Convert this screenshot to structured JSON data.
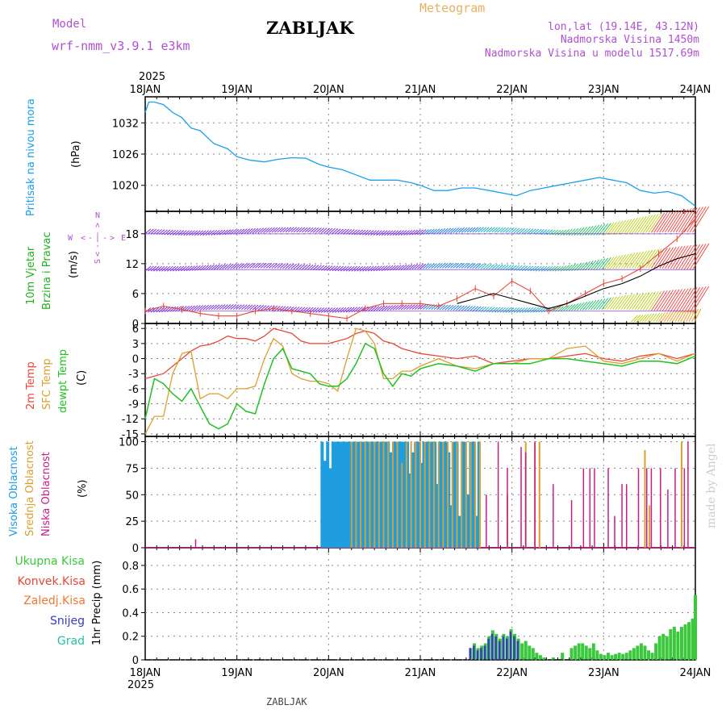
{
  "header": {
    "model_label": "Model",
    "model_value": "wrf-nmm_v3.9.1 e3km",
    "title": "ZABLJAK",
    "meteogram_label": "Meteogram",
    "lonlat": "lon,lat (19.14E, 43.12N)",
    "elevation": "Nadmorska Visina 1450m",
    "model_elevation": "Nadmorska Visina u modelu 1517.69m",
    "year_top": "2025",
    "year_bottom": "2025",
    "footer": "ZABLJAK",
    "credit": "made by Angel"
  },
  "colors": {
    "pressure": "#1aa0e8",
    "temp2m": "#e8473a",
    "sfc_temp": "#d9a030",
    "dewpoint": "#22c022",
    "high_cloud": "#1e9ee0",
    "mid_cloud": "#d9a030",
    "low_cloud": "#c81e8c",
    "precip_total": "#3cc83c",
    "precip_snow": "#3838c8",
    "model_label": "#b050d0",
    "meteogram_label": "#e8b060",
    "wind_label": "#22b022"
  },
  "chart_data": [
    {
      "type": "line",
      "title": "Pritisak na nivou mora",
      "ylabel": "(hPa)",
      "ylim": [
        1015,
        1037
      ],
      "yticks": [
        1020,
        1026,
        1032
      ],
      "x_days": [
        0,
        0.04,
        0.1,
        0.2,
        0.3,
        0.4,
        0.5,
        0.6,
        0.75,
        0.9,
        1.0,
        1.15,
        1.3,
        1.45,
        1.6,
        1.75,
        1.9,
        2.0,
        2.15,
        2.3,
        2.45,
        2.6,
        2.75,
        2.9,
        3.0,
        3.15,
        3.3,
        3.45,
        3.6,
        3.75,
        3.9,
        4.05,
        4.2,
        4.35,
        4.5,
        4.65,
        4.8,
        4.95,
        5.1,
        5.25,
        5.4,
        5.55,
        5.7,
        5.85,
        6.0
      ],
      "values": [
        1034,
        1036,
        1036,
        1035.5,
        1034,
        1033,
        1031,
        1030.5,
        1028,
        1027,
        1025.5,
        1024.8,
        1024.5,
        1025,
        1025.3,
        1025.2,
        1024,
        1023.5,
        1023,
        1022,
        1021,
        1021,
        1021,
        1020.5,
        1020,
        1019,
        1019,
        1019.5,
        1019.5,
        1019,
        1018.5,
        1018,
        1019,
        1019.5,
        1020,
        1020.5,
        1021,
        1021.5,
        1021,
        1020.5,
        1019,
        1018.5,
        1018.8,
        1018,
        1016
      ]
    },
    {
      "type": "line",
      "title": "10m Vjetar Brzina i Pravac",
      "ylabel": "(m/s)",
      "ylim": [
        0,
        22.5
      ],
      "yticks": [
        0,
        6,
        12,
        18
      ],
      "compass": {
        "north": "N",
        "east": "E",
        "west": "W",
        "south": "S"
      },
      "compass_glyphs": {
        "arrow_left": "<",
        "arrow_right": ">",
        "dash": "-",
        "bar": "|"
      },
      "x_days": [
        0,
        0.2,
        0.4,
        0.6,
        0.8,
        1.0,
        1.2,
        1.4,
        1.6,
        1.8,
        2.0,
        2.2,
        2.4,
        2.6,
        2.8,
        3.0,
        3.2,
        3.4,
        3.6,
        3.8,
        4.0,
        4.2,
        4.4,
        4.6,
        4.8,
        5.0,
        5.2,
        5.4,
        5.6,
        5.8,
        6.0
      ],
      "series": [
        {
          "name": "speed",
          "color": "#e8473a",
          "values": [
            2.5,
            3.5,
            2.8,
            2,
            1.5,
            1.5,
            2.5,
            3,
            2.5,
            2,
            1.5,
            1,
            3,
            4,
            4,
            4,
            3.5,
            5,
            7,
            5.5,
            8.5,
            6.5,
            2.5,
            4,
            6,
            8,
            9,
            11,
            14,
            17,
            21
          ]
        },
        {
          "name": "mean",
          "color": "#000000",
          "values": [
            null,
            null,
            null,
            null,
            null,
            null,
            null,
            null,
            null,
            null,
            null,
            null,
            null,
            null,
            null,
            null,
            null,
            4,
            5,
            6,
            5,
            4,
            3,
            4,
            5.5,
            7,
            8,
            9.5,
            11.5,
            13,
            14
          ]
        }
      ]
    },
    {
      "type": "line",
      "title": "2m Temp / SFC Temp / dewpt Temp",
      "ylabel": "(C)",
      "ylim": [
        -15.5,
        7
      ],
      "yticks": [
        -15,
        -12,
        -9,
        -6,
        -3,
        0,
        3,
        6
      ],
      "x_days": [
        0,
        0.1,
        0.2,
        0.3,
        0.4,
        0.5,
        0.6,
        0.7,
        0.8,
        0.9,
        1.0,
        1.1,
        1.2,
        1.3,
        1.4,
        1.5,
        1.6,
        1.7,
        1.8,
        1.9,
        2.0,
        2.1,
        2.2,
        2.3,
        2.4,
        2.5,
        2.6,
        2.7,
        2.8,
        2.9,
        3.0,
        3.2,
        3.4,
        3.6,
        3.8,
        4.0,
        4.2,
        4.4,
        4.6,
        4.8,
        5.0,
        5.2,
        5.4,
        5.6,
        5.8,
        6.0
      ],
      "series": [
        {
          "name": "2m Temp",
          "color": "#e8473a",
          "values": [
            -4,
            -3.5,
            -3,
            -1.5,
            0,
            1.5,
            2.5,
            2.8,
            3.5,
            4.5,
            4,
            4,
            3.5,
            4.5,
            6,
            5.5,
            5,
            3.5,
            3,
            3,
            3,
            3.5,
            4,
            5,
            5.5,
            5,
            3.5,
            3,
            2,
            1.5,
            1,
            0.5,
            0,
            0.5,
            -1,
            -0.5,
            0,
            0,
            0.5,
            1,
            0,
            -0.5,
            0.5,
            1,
            0,
            1
          ]
        },
        {
          "name": "SFC Temp",
          "color": "#d9a030",
          "values": [
            -15,
            -11.5,
            -11.5,
            -3,
            1,
            1.5,
            -8,
            -7,
            -7,
            -8,
            -6,
            -6,
            -5.5,
            0,
            4,
            2.5,
            -3,
            -4,
            -4.5,
            -4.5,
            -5,
            -6.5,
            0,
            6,
            5.5,
            3,
            -4,
            -4,
            -2.5,
            -2.5,
            -1.5,
            0,
            -1.5,
            -2,
            -1,
            -1,
            0,
            0,
            2,
            2.5,
            -0.5,
            -1,
            0,
            1,
            -0.5,
            1
          ]
        },
        {
          "name": "dewpt Temp",
          "color": "#22c022",
          "values": [
            -12,
            -4,
            -5,
            -7,
            -8.5,
            -6,
            -9.5,
            -13,
            -14,
            -13,
            -9,
            -10.5,
            -11,
            -5,
            0,
            2,
            -2,
            -2.5,
            -3,
            -5,
            -5.5,
            -5.5,
            -4,
            -1,
            3,
            2,
            -3,
            -5.5,
            -3,
            -3.5,
            -2,
            -1,
            -1.5,
            -2.5,
            -1,
            -1,
            -1,
            0,
            0,
            -0.5,
            -1,
            -1.5,
            -0.5,
            -0.5,
            -1,
            0.5
          ]
        }
      ]
    },
    {
      "type": "bar",
      "title": "Visoka Oblacnost / Srednja Oblacnost / Niska Oblacnost",
      "ylabel": "(%)",
      "ylim": [
        0,
        105
      ],
      "yticks": [
        0,
        25,
        50,
        75,
        100
      ],
      "series": [
        {
          "name": "Visoka Oblacnost",
          "color": "#1e9ee0",
          "x_days": [
            1.93,
            1.96,
            1.99,
            2.02,
            2.05,
            2.08,
            2.11,
            2.14,
            2.17,
            2.2,
            2.23,
            2.26,
            2.29,
            2.32,
            2.35,
            2.38,
            2.41,
            2.44,
            2.47,
            2.5,
            2.53,
            2.56,
            2.59,
            2.62,
            2.65,
            2.68,
            2.71,
            2.74,
            2.77,
            2.8,
            2.83,
            2.86,
            2.89,
            2.92,
            2.95,
            2.98,
            3.01,
            3.04,
            3.07,
            3.1,
            3.13,
            3.16,
            3.19,
            3.22,
            3.25,
            3.28,
            3.31,
            3.34,
            3.37,
            3.4,
            3.43,
            3.46,
            3.49,
            3.52,
            3.55,
            3.58,
            3.61,
            3.64
          ],
          "values": [
            100,
            82,
            100,
            75,
            100,
            100,
            100,
            100,
            100,
            100,
            100,
            100,
            100,
            100,
            100,
            100,
            100,
            100,
            100,
            100,
            100,
            100,
            100,
            100,
            100,
            90,
            100,
            100,
            100,
            100,
            100,
            100,
            70,
            90,
            100,
            100,
            80,
            100,
            100,
            100,
            100,
            100,
            60,
            100,
            100,
            100,
            90,
            40,
            100,
            100,
            30,
            100,
            100,
            50,
            100,
            100,
            30,
            100
          ]
        },
        {
          "name": "Srednja Oblacnost",
          "color": "#d9a030",
          "x_days": [
            2.25,
            2.3,
            2.35,
            2.4,
            2.45,
            2.5,
            2.55,
            2.6,
            2.65,
            2.7,
            2.75,
            2.8,
            2.85,
            2.9,
            2.95,
            3.0,
            3.05,
            3.1,
            3.15,
            3.2,
            3.25,
            3.3,
            3.35,
            3.4,
            3.45,
            3.5,
            3.55,
            3.6,
            3.65,
            3.95,
            4.15,
            4.25,
            4.3,
            5.45,
            5.5,
            5.85
          ],
          "values": [
            100,
            100,
            100,
            100,
            100,
            100,
            100,
            100,
            100,
            100,
            100,
            80,
            100,
            100,
            100,
            100,
            100,
            100,
            100,
            100,
            100,
            100,
            100,
            100,
            100,
            100,
            100,
            100,
            100,
            50,
            100,
            100,
            100,
            92,
            40,
            100
          ]
        },
        {
          "name": "Niska Oblacnost",
          "color": "#c81e8c",
          "x_days": [
            0.55,
            3.72,
            3.85,
            3.95,
            4.1,
            4.15,
            4.25,
            4.45,
            4.65,
            4.78,
            4.85,
            4.9,
            5.05,
            5.12,
            5.2,
            5.25,
            5.38,
            5.47,
            5.52,
            5.62,
            5.7,
            5.78,
            5.88,
            5.92
          ],
          "values": [
            8,
            50,
            100,
            75,
            95,
            90,
            100,
            60,
            45,
            75,
            75,
            75,
            75,
            30,
            60,
            60,
            75,
            75,
            75,
            75,
            55,
            75,
            75,
            100
          ]
        }
      ]
    },
    {
      "type": "bar",
      "title": "Ukupna Kisa / Konvek.Kisa / Zaledj.Kisa / Snijeg / Grad",
      "ylabel": "1hr Precip (mm)",
      "ylim": [
        0,
        0.95
      ],
      "yticks": [
        0,
        0.2,
        0.4,
        0.6,
        0.8
      ],
      "legend": [
        "Ukupna Kisa",
        "Konvek.Kisa",
        "Zaledj.Kisa",
        "Snijeg",
        "Grad"
      ],
      "x_days": [
        3.55,
        3.59,
        3.63,
        3.67,
        3.71,
        3.75,
        3.79,
        3.83,
        3.87,
        3.91,
        3.95,
        3.99,
        4.03,
        4.07,
        4.11,
        4.15,
        4.19,
        4.23,
        4.27,
        4.31,
        4.35,
        4.45,
        4.55,
        4.65,
        4.69,
        4.73,
        4.77,
        4.81,
        4.85,
        4.89,
        4.93,
        4.97,
        5.01,
        5.05,
        5.09,
        5.13,
        5.17,
        5.21,
        5.25,
        5.29,
        5.33,
        5.37,
        5.41,
        5.45,
        5.49,
        5.53,
        5.57,
        5.61,
        5.65,
        5.69,
        5.73,
        5.77,
        5.81,
        5.85,
        5.89,
        5.93,
        5.97,
        6.0
      ],
      "values": [
        0.1,
        0.14,
        0.1,
        0.12,
        0.14,
        0.2,
        0.25,
        0.22,
        0.18,
        0.22,
        0.2,
        0.26,
        0.22,
        0.18,
        0.14,
        0.16,
        0.12,
        0.1,
        0.06,
        0.04,
        0.02,
        0.02,
        0.06,
        0.1,
        0.12,
        0.14,
        0.14,
        0.12,
        0.1,
        0.14,
        0.08,
        0.05,
        0.04,
        0.06,
        0.04,
        0.05,
        0.06,
        0.05,
        0.06,
        0.08,
        0.1,
        0.12,
        0.14,
        0.12,
        0.08,
        0.06,
        0.14,
        0.2,
        0.22,
        0.2,
        0.26,
        0.28,
        0.24,
        0.28,
        0.3,
        0.32,
        0.35,
        0.55
      ],
      "snow_values": [
        0.1,
        0.12,
        0.08,
        0.1,
        0.12,
        0.18,
        0.22,
        0.2,
        0.16,
        0.2,
        0.18,
        0.24,
        0.2,
        0.16,
        0,
        0,
        0,
        0,
        0,
        0,
        0,
        0,
        0,
        0,
        0,
        0,
        0,
        0,
        0,
        0,
        0,
        0,
        0,
        0,
        0,
        0,
        0,
        0,
        0,
        0,
        0,
        0,
        0,
        0,
        0,
        0,
        0,
        0,
        0,
        0,
        0,
        0,
        0,
        0,
        0,
        0,
        0,
        0
      ]
    }
  ],
  "x_axis": {
    "start_label": "18JAN",
    "end_label": "24JAN",
    "tick_labels": [
      "18JAN",
      "19JAN",
      "20JAN",
      "21JAN",
      "22JAN",
      "23JAN",
      "24JAN"
    ],
    "range_days": [
      0,
      6
    ]
  },
  "panels": {
    "pressure": {
      "labels": [
        "Pritisak na nivou mora"
      ],
      "unit": "(hPa)"
    },
    "wind": {
      "labels": [
        "10m Vjetar",
        "Brzina i Pravac"
      ],
      "unit": "(m/s)"
    },
    "temp": {
      "labels": [
        "2m Temp",
        "SFC Temp",
        "dewpt Temp"
      ],
      "unit": "(C)"
    },
    "cloud": {
      "labels": [
        "Visoka Oblacnost",
        "Srednja Oblacnost",
        "Niska Oblacnost"
      ],
      "unit": "(%)"
    },
    "precip": {
      "unit": "1hr Precip (mm)"
    }
  }
}
